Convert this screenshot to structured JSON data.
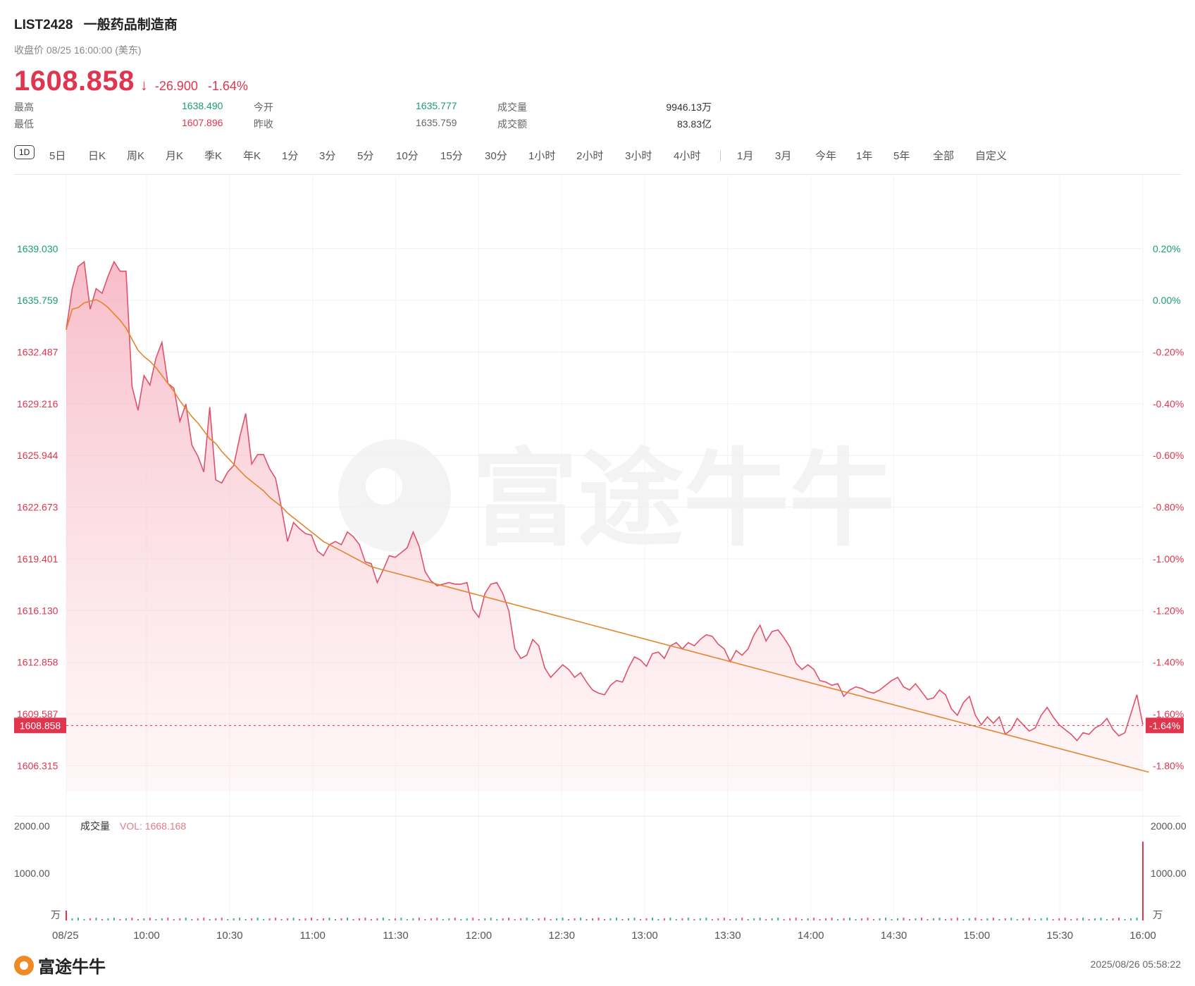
{
  "header": {
    "symbol": "LIST2428",
    "name": "一般药品制造商",
    "close_label": "收盘价 08/25 16:00:00 (美东)",
    "price": "1608.858",
    "change": "-26.900",
    "change_pct": "-1.64%"
  },
  "stats": {
    "high_label": "最高",
    "high_value": "1638.490",
    "low_label": "最低",
    "low_value": "1607.896",
    "open_label": "今开",
    "open_value": "1635.777",
    "prev_close_label": "昨收",
    "prev_close_value": "1635.759",
    "volume_label": "成交量",
    "volume_value": "9946.13万",
    "turnover_label": "成交额",
    "turnover_value": "83.83亿"
  },
  "tabs": [
    "1D",
    "5日",
    "日K",
    "周K",
    "月K",
    "季K",
    "年K",
    "1分",
    "3分",
    "5分",
    "10分",
    "15分",
    "30分",
    "1小时",
    "2小时",
    "3小时",
    "4小时",
    "1月",
    "3月",
    "今年",
    "1年",
    "5年",
    "全部",
    "自定义"
  ],
  "footer": {
    "brand": "富途牛牛",
    "timestamp": "2025/08/26 05:58:22"
  },
  "colors": {
    "price_line": "#e0516b",
    "avg_line": "#e3862d",
    "up": "#1a9e6e",
    "down": "#e0354f"
  },
  "chart_data": {
    "type": "line",
    "title": "",
    "x_ticks": [
      "08/25",
      "10:00",
      "10:30",
      "11:00",
      "11:30",
      "12:00",
      "12:30",
      "13:00",
      "13:30",
      "14:00",
      "14:30",
      "15:00",
      "15:30",
      "16:00"
    ],
    "y_ticks": [
      "1639.030",
      "1635.759",
      "1632.487",
      "1629.216",
      "1625.944",
      "1622.673",
      "1619.401",
      "1616.130",
      "1612.858",
      "1609.587",
      "1606.315"
    ],
    "y_pct_ticks": [
      "0.20%",
      "0.00%",
      "-0.20%",
      "-0.40%",
      "-0.60%",
      "-0.80%",
      "-1.00%",
      "-1.20%",
      "-1.40%",
      "-1.60%",
      "-1.80%"
    ],
    "ylim": [
      1604.68,
      1640.67
    ],
    "prev_close": 1635.759,
    "last_price_label": "1608.858",
    "last_pct_label": "-1.64%",
    "series": [
      {
        "name": "",
        "values": [
          1633.9,
          1636.5,
          1637.9,
          1638.2,
          1635.2,
          1636.5,
          1636.2,
          1637.3,
          1638.2,
          1637.6,
          1637.6,
          1630.3,
          1628.8,
          1631.0,
          1630.4,
          1632.1,
          1633.1,
          1630.5,
          1630.2,
          1628.1,
          1629.2,
          1626.6,
          1625.9,
          1624.9,
          1629.0,
          1624.4,
          1624.2,
          1624.9,
          1625.3,
          1627.1,
          1628.6,
          1625.4,
          1626.0,
          1626.0,
          1625.1,
          1624.5,
          1622.6,
          1620.5,
          1621.7,
          1621.3,
          1621.0,
          1620.9,
          1619.9,
          1619.6,
          1620.3,
          1620.5,
          1620.3,
          1621.1,
          1620.8,
          1620.3,
          1619.2,
          1619.1,
          1617.9,
          1618.7,
          1619.6,
          1619.5,
          1619.8,
          1620.1,
          1621.1,
          1620.2,
          1618.6,
          1618.0,
          1617.7,
          1617.8,
          1617.9,
          1617.8,
          1617.8,
          1617.9,
          1616.2,
          1615.7,
          1617.2,
          1617.8,
          1617.9,
          1617.2,
          1616.1,
          1613.7,
          1613.1,
          1613.3,
          1614.3,
          1613.9,
          1612.5,
          1611.9,
          1612.3,
          1612.7,
          1612.4,
          1611.9,
          1612.2,
          1611.6,
          1611.1,
          1610.9,
          1610.8,
          1611.4,
          1611.7,
          1611.6,
          1612.5,
          1613.2,
          1613.0,
          1612.6,
          1613.4,
          1613.5,
          1613.1,
          1613.9,
          1614.1,
          1613.7,
          1614.1,
          1613.9,
          1614.3,
          1614.6,
          1614.5,
          1614.0,
          1613.7,
          1612.9,
          1613.6,
          1613.3,
          1613.7,
          1614.6,
          1615.2,
          1614.2,
          1614.8,
          1614.9,
          1614.4,
          1613.8,
          1612.8,
          1612.4,
          1612.7,
          1612.4,
          1611.7,
          1611.6,
          1611.4,
          1611.5,
          1610.7,
          1611.1,
          1611.3,
          1611.2,
          1611.0,
          1610.9,
          1611.1,
          1611.4,
          1611.7,
          1611.9,
          1611.3,
          1611.1,
          1611.5,
          1611.0,
          1610.5,
          1610.6,
          1611.1,
          1610.8,
          1609.9,
          1609.5,
          1610.3,
          1610.7,
          1609.5,
          1608.9,
          1609.4,
          1609.0,
          1609.4,
          1608.3,
          1608.6,
          1609.3,
          1608.9,
          1608.5,
          1608.7,
          1609.5,
          1610.0,
          1609.4,
          1608.9,
          1608.6,
          1608.3,
          1607.9,
          1608.4,
          1608.3,
          1608.7,
          1608.9,
          1609.3,
          1608.6,
          1608.2,
          1608.4,
          1609.6,
          1610.8,
          1608.9
        ]
      },
      {
        "name": "",
        "values": [
          1633.9,
          1635.2,
          1635.3,
          1635.6,
          1635.7,
          1635.8,
          1635.6,
          1635.3,
          1634.9,
          1634.5,
          1634.0,
          1633.3,
          1632.6,
          1632.2,
          1631.9,
          1631.5,
          1631.0,
          1630.5,
          1630.0,
          1629.4,
          1628.9,
          1628.4,
          1628.0,
          1627.5,
          1627.0,
          1626.7,
          1626.2,
          1625.8,
          1625.4,
          1625.0,
          1624.6,
          1624.3,
          1624.0,
          1623.7,
          1623.3,
          1623.0,
          1622.7,
          1622.3,
          1622.0,
          1621.7,
          1621.4,
          1621.1,
          1620.8,
          1620.5,
          1620.3,
          1620.1,
          1619.9,
          1619.7,
          1619.5,
          1619.3,
          1619.1,
          1618.9,
          1618.8,
          1618.7,
          1618.6,
          1618.5,
          1618.4,
          1618.3,
          1618.2,
          1618.1,
          1618.0,
          1617.9,
          1617.8,
          1617.7,
          1617.6,
          1617.5,
          1617.4,
          1617.3,
          1617.2,
          1617.1,
          1617.0,
          1616.9,
          1616.8,
          1616.7,
          1616.6,
          1616.5,
          1616.4,
          1616.3,
          1616.2,
          1616.1,
          1616.0,
          1615.9,
          1615.8,
          1615.7,
          1615.6,
          1615.5,
          1615.4,
          1615.3,
          1615.2,
          1615.1,
          1615.0,
          1614.9,
          1614.8,
          1614.7,
          1614.6,
          1614.5,
          1614.4,
          1614.3,
          1614.2,
          1614.1,
          1614.0,
          1613.9,
          1613.8,
          1613.7,
          1613.6,
          1613.5,
          1613.4,
          1613.3,
          1613.2,
          1613.1,
          1613.0,
          1612.9,
          1612.8,
          1612.7,
          1612.6,
          1612.5,
          1612.4,
          1612.3,
          1612.2,
          1612.1,
          1612.0,
          1611.9,
          1611.8,
          1611.7,
          1611.6,
          1611.5,
          1611.4,
          1611.3,
          1611.2,
          1611.1,
          1611.0,
          1610.9,
          1610.8,
          1610.7,
          1610.6,
          1610.5,
          1610.4,
          1610.3,
          1610.2,
          1610.1,
          1610.0,
          1609.9,
          1609.8,
          1609.7,
          1609.6,
          1609.5,
          1609.4,
          1609.3,
          1609.2,
          1609.1,
          1609.0,
          1608.9,
          1608.8,
          1608.7,
          1608.6,
          1608.5,
          1608.4,
          1608.3,
          1608.2,
          1608.1,
          1608.0,
          1607.9,
          1607.8,
          1607.7,
          1607.6,
          1607.5,
          1607.4,
          1607.3,
          1607.2,
          1607.1,
          1607.0,
          1606.9,
          1606.8,
          1606.7,
          1606.6,
          1606.5,
          1606.4,
          1606.3,
          1606.2,
          1606.1,
          1606.0,
          1605.9
        ]
      }
    ],
    "volume": {
      "label": "成交量",
      "vol_text": "VOL: 1668.168",
      "unit": "万",
      "y_ticks": [
        "2000.00",
        "1000.00"
      ],
      "ylim": [
        0,
        2000
      ],
      "last_bar": 1668.168
    }
  }
}
